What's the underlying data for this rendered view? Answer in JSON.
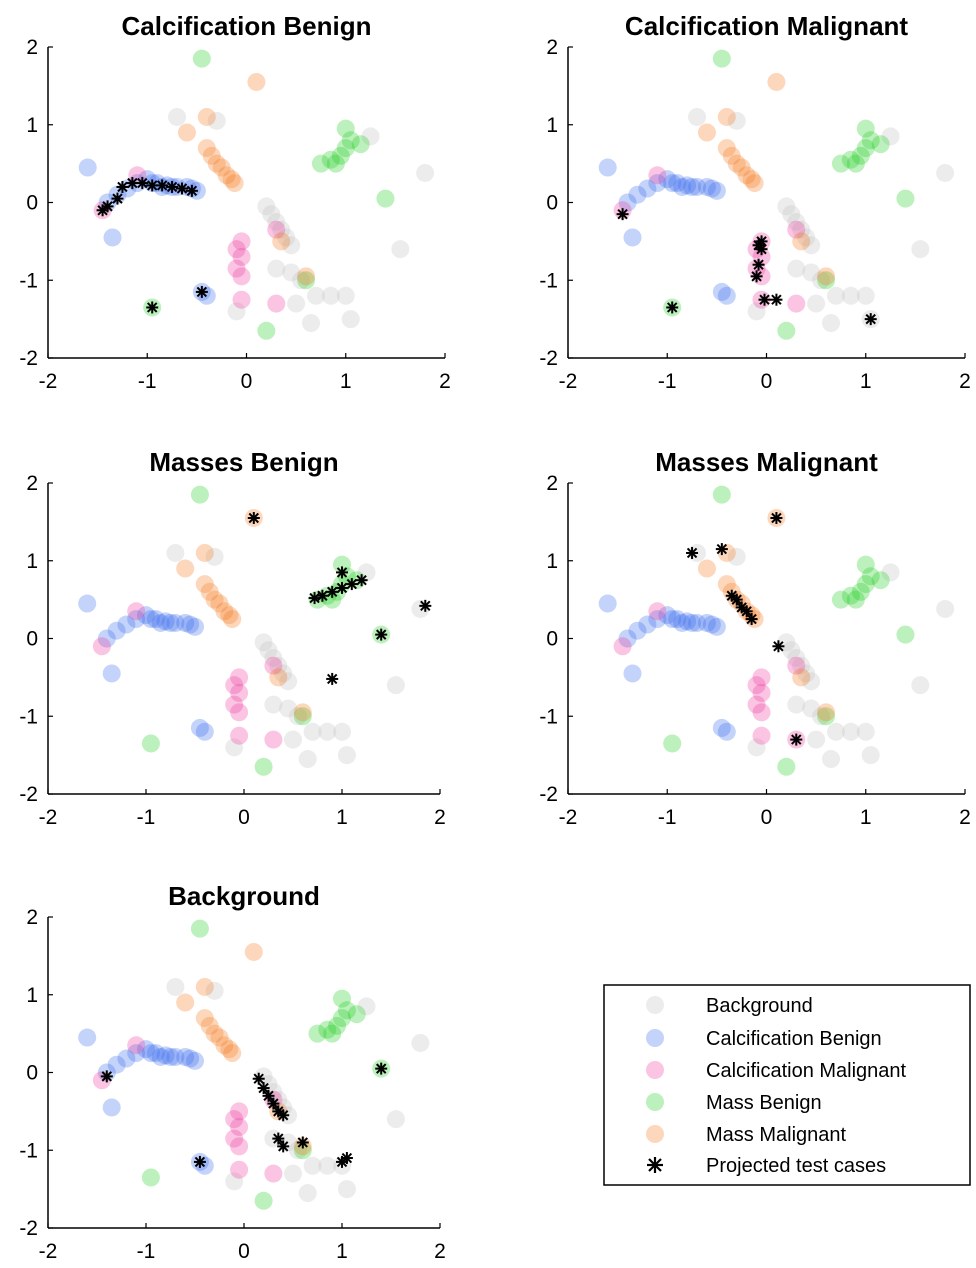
{
  "colors": {
    "background": "#c8c8c8",
    "calc_benign": "#3d6df0",
    "calc_malignant": "#f03aa0",
    "mass_benign": "#22cc22",
    "mass_malignant": "#f47a22",
    "projected": "#000000"
  },
  "legend": {
    "items": [
      {
        "label": "Background",
        "color_key": "background",
        "marker": "circle"
      },
      {
        "label": "Calcification Benign",
        "color_key": "calc_benign",
        "marker": "circle"
      },
      {
        "label": "Calcification Malignant",
        "color_key": "calc_malignant",
        "marker": "circle"
      },
      {
        "label": "Mass Benign",
        "color_key": "mass_benign",
        "marker": "circle"
      },
      {
        "label": "Mass Malignant",
        "color_key": "mass_malignant",
        "marker": "circle"
      },
      {
        "label": "Projected test cases",
        "color_key": "projected",
        "marker": "star"
      }
    ]
  },
  "chart_data": [
    {
      "type": "scatter",
      "title": "Calcification Benign",
      "xlim": [
        -2,
        2
      ],
      "ylim": [
        -2,
        2
      ],
      "xticks": [
        "-2",
        "-1",
        "0",
        "1",
        "2"
      ],
      "yticks": [
        "-2",
        "-1",
        "0",
        "1",
        "2"
      ],
      "grid": false,
      "projected": [
        [
          -1.45,
          -0.1
        ],
        [
          -1.4,
          -0.05
        ],
        [
          -1.3,
          0.05
        ],
        [
          -1.25,
          0.2
        ],
        [
          -1.15,
          0.25
        ],
        [
          -1.05,
          0.25
        ],
        [
          -0.95,
          0.22
        ],
        [
          -0.85,
          0.22
        ],
        [
          -0.75,
          0.2
        ],
        [
          -0.65,
          0.18
        ],
        [
          -0.55,
          0.15
        ],
        [
          -0.95,
          -1.35
        ],
        [
          -0.45,
          -1.15
        ]
      ]
    },
    {
      "type": "scatter",
      "title": "Calcification Malignant",
      "xlim": [
        -2,
        2
      ],
      "ylim": [
        -2,
        2
      ],
      "xticks": [
        "-2",
        "-1",
        "0",
        "1",
        "2"
      ],
      "yticks": [
        "-2",
        "-1",
        "0",
        "1",
        "2"
      ],
      "grid": false,
      "projected": [
        [
          -1.45,
          -0.15
        ],
        [
          -0.05,
          -0.5
        ],
        [
          -0.08,
          -0.55
        ],
        [
          -0.05,
          -0.6
        ],
        [
          -0.08,
          -0.8
        ],
        [
          -0.1,
          -0.95
        ],
        [
          -0.02,
          -1.25
        ],
        [
          0.1,
          -1.25
        ],
        [
          -0.95,
          -1.35
        ],
        [
          1.05,
          -1.5
        ]
      ]
    },
    {
      "type": "scatter",
      "title": "Masses Benign",
      "xlim": [
        -2,
        2
      ],
      "ylim": [
        -2,
        2
      ],
      "xticks": [
        "-2",
        "-1",
        "0",
        "1",
        "2"
      ],
      "yticks": [
        "-2",
        "-1",
        "0",
        "1",
        "2"
      ],
      "grid": false,
      "projected": [
        [
          0.72,
          0.52
        ],
        [
          0.8,
          0.55
        ],
        [
          0.9,
          0.6
        ],
        [
          1.0,
          0.65
        ],
        [
          1.1,
          0.7
        ],
        [
          1.0,
          0.85
        ],
        [
          1.2,
          0.75
        ],
        [
          1.85,
          0.42
        ],
        [
          1.4,
          0.05
        ],
        [
          0.9,
          -0.52
        ],
        [
          0.1,
          1.55
        ]
      ]
    },
    {
      "type": "scatter",
      "title": "Masses Malignant",
      "xlim": [
        -2,
        2
      ],
      "ylim": [
        -2,
        2
      ],
      "xticks": [
        "-2",
        "-1",
        "0",
        "1",
        "2"
      ],
      "yticks": [
        "-2",
        "-1",
        "0",
        "1",
        "2"
      ],
      "grid": false,
      "projected": [
        [
          -0.75,
          1.1
        ],
        [
          -0.45,
          1.15
        ],
        [
          0.1,
          1.55
        ],
        [
          -0.35,
          0.55
        ],
        [
          -0.3,
          0.5
        ],
        [
          -0.25,
          0.4
        ],
        [
          -0.2,
          0.35
        ],
        [
          -0.15,
          0.25
        ],
        [
          0.12,
          -0.1
        ],
        [
          0.3,
          -1.3
        ]
      ]
    },
    {
      "type": "scatter",
      "title": "Background",
      "xlim": [
        -2,
        2
      ],
      "ylim": [
        -2,
        2
      ],
      "xticks": [
        "-2",
        "-1",
        "0",
        "1",
        "2"
      ],
      "yticks": [
        "-2",
        "-1",
        "0",
        "1",
        "2"
      ],
      "grid": false,
      "projected": [
        [
          -1.4,
          -0.05
        ],
        [
          0.15,
          -0.08
        ],
        [
          0.2,
          -0.2
        ],
        [
          0.25,
          -0.3
        ],
        [
          0.3,
          -0.4
        ],
        [
          0.35,
          -0.5
        ],
        [
          0.4,
          -0.55
        ],
        [
          0.35,
          -0.85
        ],
        [
          0.4,
          -0.95
        ],
        [
          0.6,
          -0.9
        ],
        [
          1.0,
          -1.15
        ],
        [
          1.05,
          -1.1
        ],
        [
          1.4,
          0.05
        ],
        [
          -0.45,
          -1.15
        ]
      ]
    }
  ],
  "background_clusters": {
    "background": [
      [
        -0.7,
        1.1
      ],
      [
        -0.3,
        1.05
      ],
      [
        0.2,
        -0.05
      ],
      [
        0.25,
        -0.15
      ],
      [
        0.3,
        -0.25
      ],
      [
        0.35,
        -0.35
      ],
      [
        0.4,
        -0.45
      ],
      [
        0.45,
        -0.55
      ],
      [
        0.3,
        -0.85
      ],
      [
        0.45,
        -0.9
      ],
      [
        0.55,
        -1.0
      ],
      [
        0.7,
        -1.2
      ],
      [
        0.5,
        -1.3
      ],
      [
        0.65,
        -1.55
      ],
      [
        1.0,
        -1.2
      ],
      [
        1.05,
        -1.5
      ],
      [
        0.85,
        -1.2
      ],
      [
        -0.1,
        -1.4
      ],
      [
        1.55,
        -0.6
      ],
      [
        1.8,
        0.38
      ],
      [
        1.25,
        0.85
      ]
    ],
    "calc_benign": [
      [
        -1.6,
        0.45
      ],
      [
        -1.4,
        0.0
      ],
      [
        -1.35,
        -0.45
      ],
      [
        -1.3,
        0.1
      ],
      [
        -1.2,
        0.18
      ],
      [
        -1.1,
        0.25
      ],
      [
        -1.0,
        0.3
      ],
      [
        -0.9,
        0.25
      ],
      [
        -0.8,
        0.22
      ],
      [
        -0.7,
        0.2
      ],
      [
        -0.6,
        0.2
      ],
      [
        -0.55,
        0.18
      ],
      [
        -0.5,
        0.15
      ],
      [
        -0.95,
        0.25
      ],
      [
        -0.85,
        0.2
      ],
      [
        -0.75,
        0.2
      ],
      [
        -0.4,
        -1.2
      ],
      [
        -0.45,
        -1.15
      ]
    ],
    "calc_malignant": [
      [
        -1.45,
        -0.1
      ],
      [
        -1.1,
        0.35
      ],
      [
        -0.05,
        -0.5
      ],
      [
        -0.1,
        -0.6
      ],
      [
        -0.05,
        -0.7
      ],
      [
        -0.1,
        -0.85
      ],
      [
        -0.05,
        -0.95
      ],
      [
        -0.05,
        -1.25
      ],
      [
        0.3,
        -1.3
      ],
      [
        0.3,
        -0.35
      ]
    ],
    "mass_benign": [
      [
        -0.45,
        1.85
      ],
      [
        0.75,
        0.5
      ],
      [
        0.85,
        0.55
      ],
      [
        0.95,
        0.6
      ],
      [
        1.0,
        0.7
      ],
      [
        1.05,
        0.8
      ],
      [
        1.0,
        0.95
      ],
      [
        1.15,
        0.75
      ],
      [
        0.9,
        0.5
      ],
      [
        1.4,
        0.05
      ],
      [
        0.6,
        -1.0
      ],
      [
        0.2,
        -1.65
      ],
      [
        -0.95,
        -1.35
      ]
    ],
    "mass_malignant": [
      [
        0.1,
        1.55
      ],
      [
        -0.4,
        1.1
      ],
      [
        -0.6,
        0.9
      ],
      [
        -0.4,
        0.7
      ],
      [
        -0.35,
        0.6
      ],
      [
        -0.3,
        0.5
      ],
      [
        -0.25,
        0.45
      ],
      [
        -0.2,
        0.35
      ],
      [
        -0.15,
        0.3
      ],
      [
        -0.12,
        0.25
      ],
      [
        0.35,
        -0.5
      ],
      [
        0.6,
        -0.95
      ]
    ]
  }
}
